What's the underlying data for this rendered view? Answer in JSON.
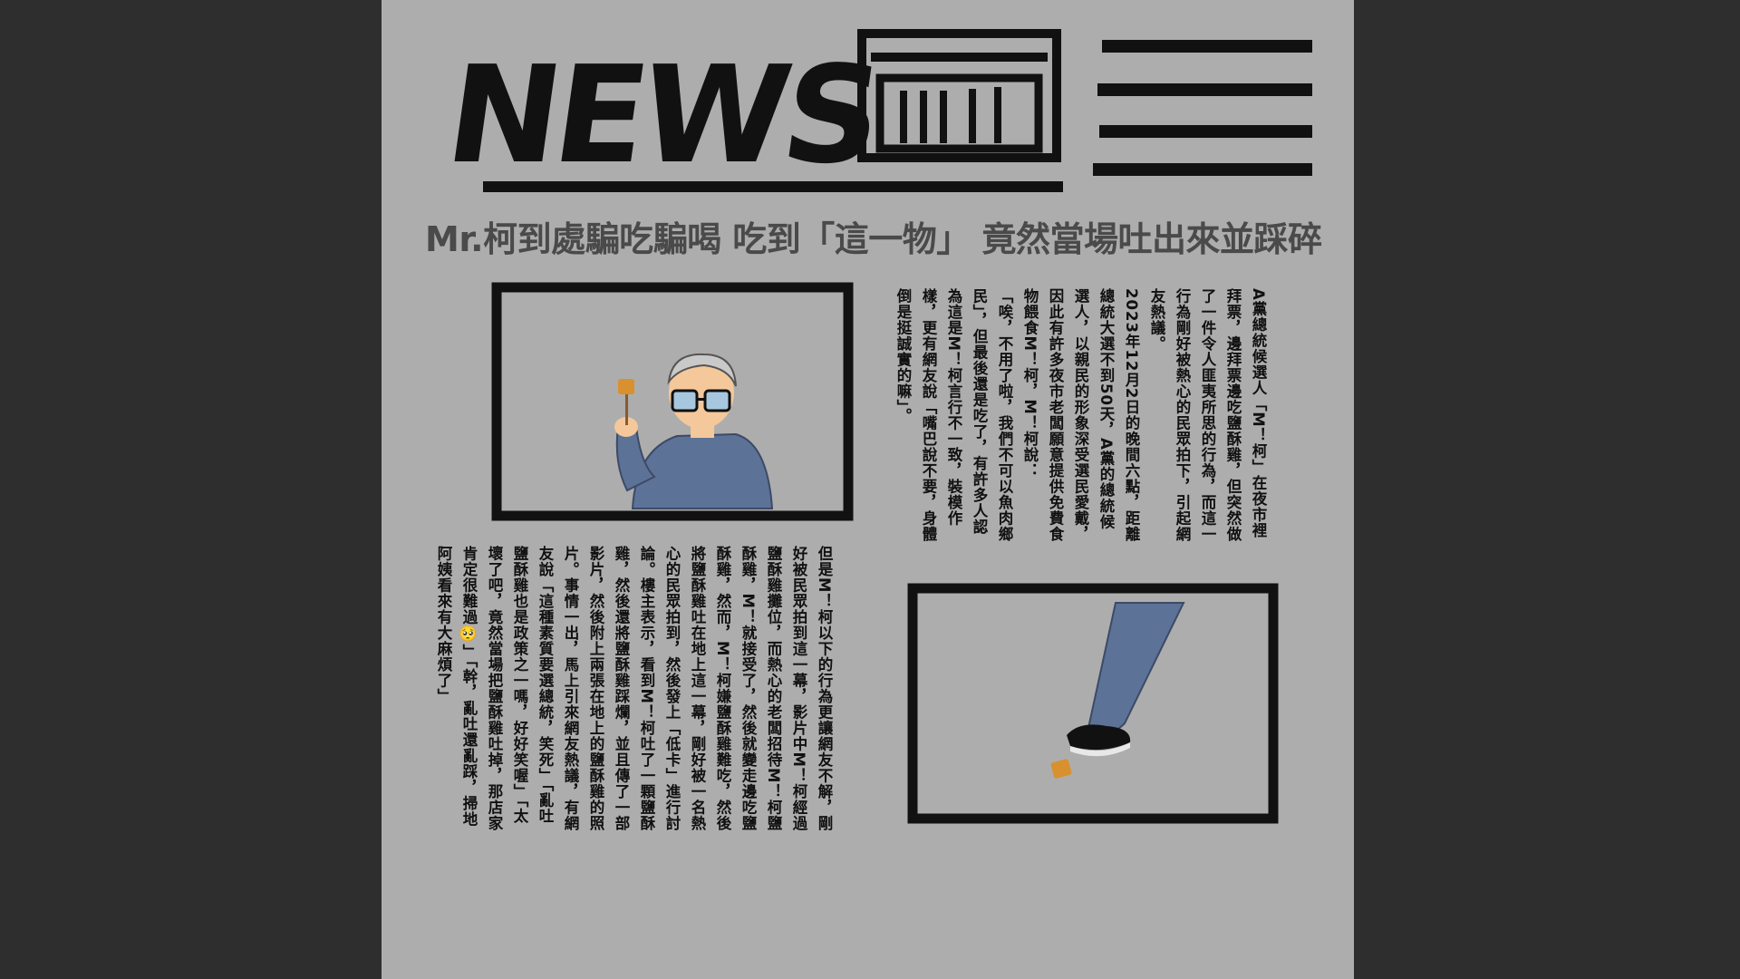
{
  "masthead": {
    "wordmark": "NEWS",
    "icon": "newspaper-stack-icon",
    "lines_icon": "text-lines-icon"
  },
  "headline": "Mr.柯到處騙吃騙喝 吃到「這一物」 竟然當場吐出來並踩碎",
  "article": {
    "top_paragraphs": [
      "A黨總統候選人「M！柯」在夜市裡拜票，邊拜票邊吃鹽酥雞，但突然做了一件令人匪夷所思的行為，而這一行為剛好被熱心的民眾拍下，引起網友熱議。",
      "2023年12月2日的晚間六點，距離總統大選不到50天，A黨的總統候選人，以親民的形象深受選民愛戴，因此有許多夜市老闆願意提供免費食物餵食M！柯，M！柯說：",
      "「唉，不用了啦，我們不可以魚肉鄉民」，但最後還是吃了，有許多人認為這是M！柯言行不一致，裝模作樣，更有網友說「嘴巴說不要，身體倒是挺誠實的嘛」。"
    ],
    "bottom_paragraphs": [
      "但是M！柯以下的行為更讓網友不解，剛好被民眾拍到這一幕，影片中M！柯經過鹽酥雞攤位，而熱心的老闆招待M！柯鹽酥雞，M！就接受了，然後就變走邊吃鹽酥雞，然而，M！柯嫌鹽酥雞難吃，然後將鹽酥雞吐在地上這一幕，剛好被一名熱心的民眾拍到，然後發上「低卡」進行討論。樓主表示，看到M！柯吐了一顆鹽酥雞，然後還將鹽酥雞踩爛，並且傳了一部影片，然後附上兩張在地上的鹽酥雞的照片。事情一出，馬上引來網友熱議，有網友說「這種素質要選總統，笑死」「亂吐鹽酥雞也是政策之一嗎，好好笑喔」「太壞了吧，竟然當場把鹽酥雞吐掉，那店家肯定很難過🥺」「幹，亂吐還亂踩，掃地阿姨看來有大麻煩了」"
    ]
  },
  "illustrations": {
    "man_eating": "man-eating-snack-illustration",
    "foot_stepping": "foot-stepping-snack-illustration"
  },
  "colors": {
    "page": "#adadad",
    "background": "#2e2e2e",
    "ink": "#111111",
    "headline": "#4a4a4a",
    "jacket": "#5d7297",
    "snack": "#d9902e"
  }
}
